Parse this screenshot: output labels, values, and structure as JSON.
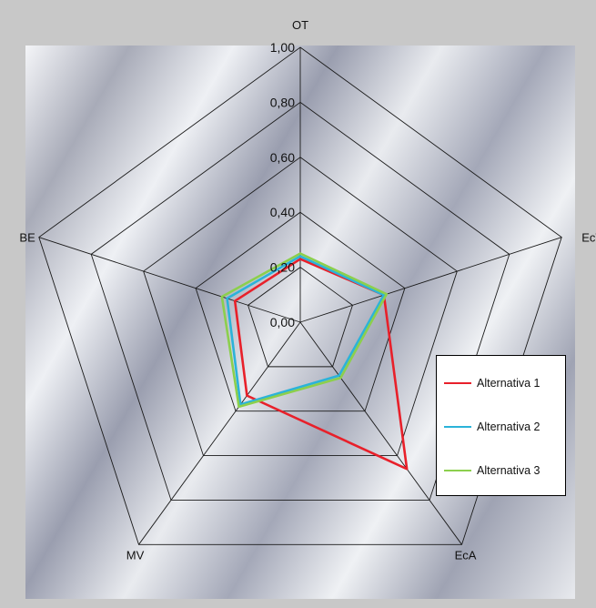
{
  "chart_data": {
    "type": "radar",
    "axes": [
      "OT",
      "EcT",
      "EcA",
      "MV",
      "BE"
    ],
    "rmax": 1.0,
    "ticks": [
      "0,00",
      "0,20",
      "0,40",
      "0,60",
      "0,80",
      "1,00"
    ],
    "tick_values": [
      0,
      0.2,
      0.4,
      0.6,
      0.8,
      1.0
    ],
    "grid": true,
    "legend_position": "right",
    "series": [
      {
        "name": "Alternativa 1",
        "color": "#e8202a",
        "values": [
          0.23,
          0.32,
          0.66,
          0.33,
          0.25
        ]
      },
      {
        "name": "Alternativa 2",
        "color": "#2bb3d9",
        "values": [
          0.24,
          0.32,
          0.24,
          0.37,
          0.28
        ]
      },
      {
        "name": "Alternativa 3",
        "color": "#8ccf4d",
        "values": [
          0.25,
          0.33,
          0.25,
          0.38,
          0.3
        ]
      }
    ]
  }
}
